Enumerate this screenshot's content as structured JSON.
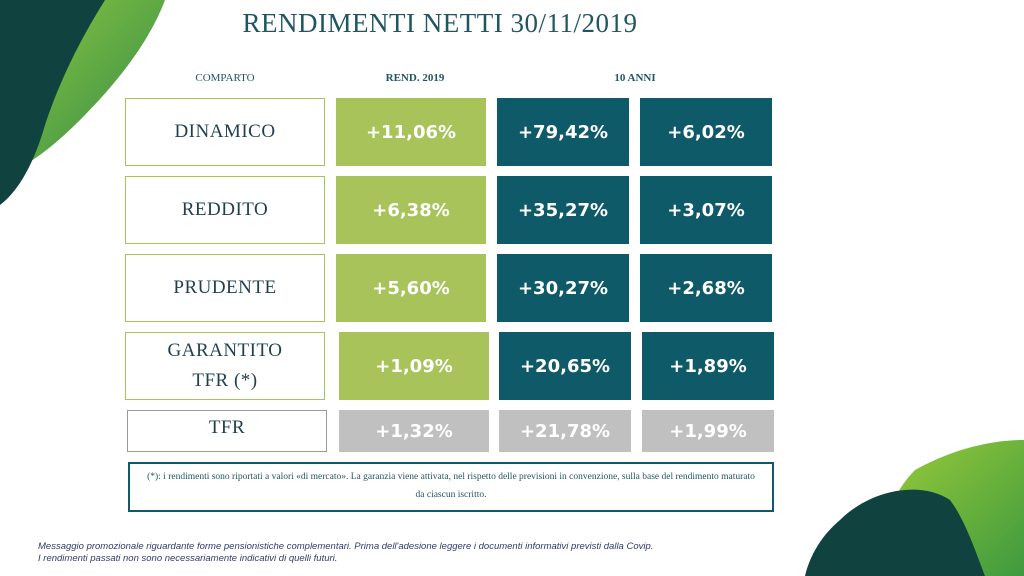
{
  "title": "RENDIMENTI NETTI 30/11/2019",
  "headers": {
    "comparto": "COMPARTO",
    "rend": "REND. 2019",
    "anni": "10 ANNI"
  },
  "rows": [
    {
      "name": "DINAMICO",
      "rend": "+11,06%",
      "ten_cum": "+79,42%",
      "ten_ann": "+6,02%"
    },
    {
      "name": "REDDITO",
      "rend": "+6,38%",
      "ten_cum": "+35,27%",
      "ten_ann": "+3,07%"
    },
    {
      "name": "PRUDENTE",
      "rend": "+5,60%",
      "ten_cum": "+30,27%",
      "ten_ann": "+2,68%"
    },
    {
      "name": "GARANTITO TFR (*)",
      "rend": "+1,09%",
      "ten_cum": "+20,65%",
      "ten_ann": "+1,89%"
    },
    {
      "name": "TFR",
      "rend": "+1,32%",
      "ten_cum": "+21,78%",
      "ten_ann": "+1,99%"
    }
  ],
  "note": "(*): i rendimenti sono riportati a valori «di mercato». La garanzia viene attivata, nel rispetto delle previsioni in convenzione, sulla base del rendimento maturato da ciascun iscritto.",
  "footer": {
    "line1": "Messaggio promozionale riguardante forme pensionistiche complementari. Prima dell'adesione leggere i documenti informativi previsti dalla Covip.",
    "line2": "I rendimenti passati non sono necessariamente indicativi di quelli futuri."
  },
  "colors": {
    "green": "#a8c35a",
    "teal": "#0f5a69",
    "grey": "#c0c0c0",
    "dark_green": "#0e4a4a"
  }
}
